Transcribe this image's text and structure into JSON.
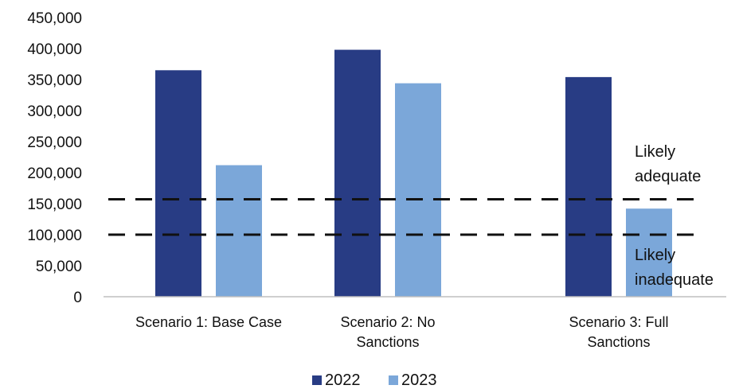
{
  "chart_data": {
    "type": "bar",
    "categories": [
      [
        "Scenario 1: Base Case"
      ],
      [
        "Scenario 2: No",
        "Sanctions"
      ],
      [
        "Scenario 3: Full",
        "Sanctions"
      ]
    ],
    "series": [
      {
        "name": "2022",
        "values": [
          365000,
          398000,
          354000
        ],
        "color": "#283c84"
      },
      {
        "name": "2023",
        "values": [
          212000,
          344000,
          142000
        ],
        "color": "#7ba7d9"
      }
    ],
    "ylim": [
      0,
      450000
    ],
    "yticks": [
      "0",
      "50,000",
      "100,000",
      "150,000",
      "200,000",
      "250,000",
      "300,000",
      "350,000",
      "400,000",
      "450,000"
    ],
    "ytick_values": [
      0,
      50000,
      100000,
      150000,
      200000,
      250000,
      300000,
      350000,
      400000,
      450000
    ],
    "threshold_lines": [
      {
        "value": 157000,
        "style": "dashed",
        "color": "#111111"
      },
      {
        "value": 100000,
        "style": "dashed",
        "color": "#111111"
      }
    ],
    "annotations": [
      {
        "lines": [
          "Likely",
          "adequate"
        ]
      },
      {
        "lines": [
          "Likely",
          "inadequate"
        ]
      }
    ],
    "legend_position": "bottom",
    "title": "",
    "xlabel": "",
    "ylabel": "",
    "grid": false
  }
}
